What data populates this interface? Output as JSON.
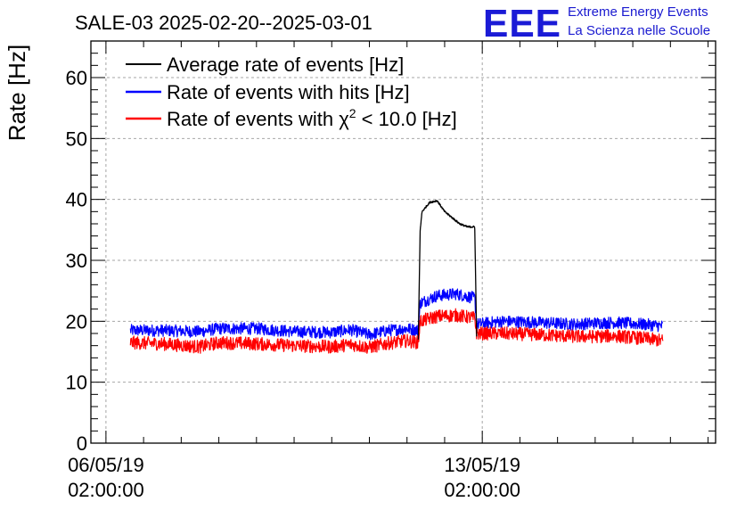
{
  "title": "SALE-03 2025-02-20--2025-03-01",
  "logo": {
    "letters": "EEE",
    "line1": "Extreme Energy Events",
    "line2": "La Scienza nelle Scuole"
  },
  "colors": {
    "average": "#000000",
    "hits": "#0000ff",
    "chi2": "#ff0000",
    "grid": "#a6a6a6",
    "logo": "#1b1bd6"
  },
  "chart_data": {
    "type": "line",
    "title": "SALE-03 2025-02-20--2025-03-01",
    "ylabel": "Rate [Hz]",
    "xlabel": "",
    "ylim": [
      0,
      66
    ],
    "y_ticks": [
      0,
      10,
      20,
      30,
      40,
      50,
      60
    ],
    "x_unit": "days since 06/05/19 02:00:00",
    "xlim": [
      -0.4,
      16.2
    ],
    "x_ticks": [
      {
        "value": 0,
        "date": "06/05/19",
        "time": "02:00:00"
      },
      {
        "value": 10,
        "date": "13/05/19",
        "time": "02:00:00"
      }
    ],
    "grid": true,
    "legend_position": "top-left",
    "legend": [
      {
        "name": "Average rate of events [Hz]",
        "color": "#000000",
        "label_main": "Average rate of events [Hz]"
      },
      {
        "name": "Rate of events with hits [Hz]",
        "color": "#0000ff",
        "label_main": "Rate of events with hits [Hz]"
      },
      {
        "name": "Rate of events with chi2 < 10.0 [Hz]",
        "color": "#ff0000",
        "label_pre": "Rate of events with χ",
        "label_sup": "2",
        "label_post": " < 10.0 [Hz]"
      }
    ],
    "series": [
      {
        "name": "Average rate of events [Hz]",
        "color": "#000000",
        "noise": 0,
        "x": [
          8.3,
          8.35,
          8.4,
          8.6,
          8.8,
          9.0,
          9.2,
          9.4,
          9.6,
          9.75,
          9.8,
          9.85
        ],
        "values": [
          17.0,
          35.0,
          38.0,
          39.5,
          39.8,
          38.0,
          37.0,
          36.0,
          35.5,
          35.5,
          35.5,
          17.5
        ]
      },
      {
        "name": "Rate of events with hits [Hz]",
        "color": "#0000ff",
        "noise": 1.0,
        "x": [
          0.65,
          1.5,
          2.5,
          3.0,
          4.0,
          5.0,
          6.0,
          6.5,
          7.0,
          7.5,
          8.0,
          8.3,
          8.35,
          8.8,
          9.3,
          9.8,
          9.85,
          10.5,
          11.5,
          12.5,
          13.0,
          13.5,
          14.3,
          14.8
        ],
        "values": [
          18.5,
          18.5,
          18.3,
          18.8,
          18.8,
          18.3,
          18.2,
          18.6,
          17.8,
          18.5,
          18.8,
          18.5,
          23.0,
          24.2,
          24.5,
          23.8,
          19.5,
          20.0,
          19.8,
          19.5,
          19.7,
          19.8,
          19.5,
          19.2
        ]
      },
      {
        "name": "Rate of events with chi2 < 10.0 [Hz]",
        "color": "#ff0000",
        "noise": 1.1,
        "x": [
          0.65,
          1.5,
          2.5,
          3.0,
          4.0,
          5.0,
          6.0,
          6.5,
          7.0,
          7.5,
          8.0,
          8.3,
          8.35,
          8.8,
          9.3,
          9.8,
          9.85,
          10.5,
          11.5,
          12.5,
          13.0,
          13.5,
          14.3,
          14.8
        ],
        "values": [
          16.5,
          16.3,
          15.8,
          16.5,
          16.3,
          16.0,
          15.8,
          16.2,
          15.7,
          16.4,
          16.8,
          16.5,
          20.0,
          20.8,
          21.0,
          20.5,
          18.0,
          18.0,
          17.8,
          17.5,
          17.5,
          17.6,
          17.2,
          16.8
        ]
      }
    ]
  }
}
